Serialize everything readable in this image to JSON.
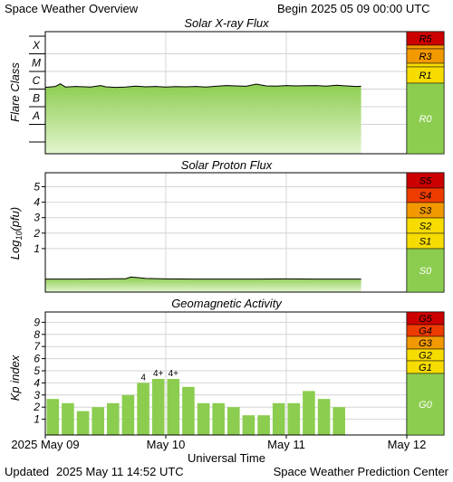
{
  "header": {
    "title": "Space Weather Overview",
    "begin_label": "Begin",
    "begin_value": "2025 05 09 00:00 UTC"
  },
  "footer": {
    "updated_label": "Updated",
    "updated_value": "2025 May 11 14:52 UTC",
    "credit": "Space Weather Prediction Center"
  },
  "x_axis": {
    "title": "Universal Time",
    "day_labels": [
      "2025 May 09",
      "May 10",
      "May 11",
      "May 12"
    ]
  },
  "colors": {
    "green": "#8ccd50",
    "green_light": "#e3f5cf",
    "yellow": "#f6dc00",
    "orange": "#f29900",
    "red_orange": "#ee3b00",
    "red": "#cc0000",
    "grid": "#d4d4d4"
  },
  "chart_data": [
    {
      "type": "area",
      "title": "Solar X-ray Flux",
      "ylabel": "Flare Class",
      "y_classes": [
        "A",
        "B",
        "C",
        "M",
        "X"
      ],
      "x_unit": "hours since 2025 05 09 00:00 UTC",
      "xlim": [
        0,
        72
      ],
      "data_end_hour": 62.9,
      "x": [
        0,
        2,
        3,
        4,
        6,
        9,
        11,
        12,
        14,
        16,
        18,
        20,
        22,
        24,
        26,
        28,
        30,
        32,
        34,
        36,
        38,
        40,
        42,
        44,
        46,
        48,
        50,
        52,
        54,
        56,
        58,
        60,
        62,
        62.9
      ],
      "log10_flux": [
        -5.9,
        -5.85,
        -5.7,
        -5.88,
        -5.85,
        -5.88,
        -5.8,
        -5.87,
        -5.9,
        -5.88,
        -5.83,
        -5.87,
        -5.85,
        -5.88,
        -5.86,
        -5.87,
        -5.85,
        -5.88,
        -5.84,
        -5.8,
        -5.82,
        -5.84,
        -5.72,
        -5.82,
        -5.83,
        -5.8,
        -5.82,
        -5.81,
        -5.8,
        -5.83,
        -5.78,
        -5.82,
        -5.85,
        -5.84
      ],
      "scale": [
        "R0",
        "R1",
        "R3",
        "R5"
      ],
      "scale_colors": [
        "#8ccd50",
        "#f6dc00",
        "#f29900",
        "#cc0000"
      ]
    },
    {
      "type": "area",
      "title": "Solar Proton Flux",
      "ylabel": "Log10(pfu)",
      "ylabel_main": "Log",
      "ylabel_sub": "10",
      "ylabel_rest": "(pfu)",
      "y_ticks": [
        "1",
        "2",
        "3",
        "4",
        "5"
      ],
      "ylim": [
        -1.5,
        5.5
      ],
      "xlim": [
        0,
        72
      ],
      "data_end_hour": 62.9,
      "x": [
        0,
        6,
        12,
        16,
        17,
        18,
        20,
        24,
        30,
        36,
        42,
        48,
        54,
        60,
        62.9
      ],
      "log10_pfu": [
        -0.97,
        -0.97,
        -0.96,
        -0.95,
        -0.84,
        -0.86,
        -0.93,
        -0.96,
        -0.97,
        -0.97,
        -0.97,
        -0.96,
        -0.97,
        -0.97,
        -0.97
      ],
      "scale": [
        "S0",
        "S1",
        "S2",
        "S3",
        "S4",
        "S5"
      ],
      "scale_colors": [
        "#8ccd50",
        "#f6dc00",
        "#f6dc00",
        "#f29900",
        "#ee3b00",
        "#cc0000"
      ]
    },
    {
      "type": "bar",
      "title": "Geomagnetic Activity",
      "ylabel": "Kp index",
      "y_ticks": [
        "1",
        "2",
        "3",
        "4",
        "5",
        "6",
        "7",
        "8",
        "9"
      ],
      "ylim": [
        0,
        9.5
      ],
      "xlim": [
        0,
        72
      ],
      "bar_width_hours": 3,
      "bar_starts": [
        0,
        3,
        6,
        9,
        12,
        15,
        18,
        21,
        24,
        27,
        30,
        33,
        36,
        39,
        42,
        45,
        48,
        51,
        54,
        57,
        60
      ],
      "values": [
        2.67,
        2.33,
        1.67,
        2.0,
        2.33,
        3.0,
        4.0,
        4.33,
        4.33,
        3.67,
        2.33,
        2.33,
        2.0,
        1.33,
        1.33,
        2.33,
        2.33,
        3.33,
        2.67,
        2.0,
        0
      ],
      "data_labels": [
        "",
        "",
        "",
        "",
        "",
        "",
        "4",
        "4+",
        "4+",
        "",
        "",
        "",
        "",
        "",
        "",
        "",
        "",
        "",
        "",
        "",
        ""
      ],
      "scale": [
        "G0",
        "G1",
        "G2",
        "G3",
        "G4",
        "G5"
      ],
      "scale_colors": [
        "#8ccd50",
        "#f6dc00",
        "#f6dc00",
        "#f29900",
        "#ee3b00",
        "#cc0000"
      ]
    }
  ]
}
